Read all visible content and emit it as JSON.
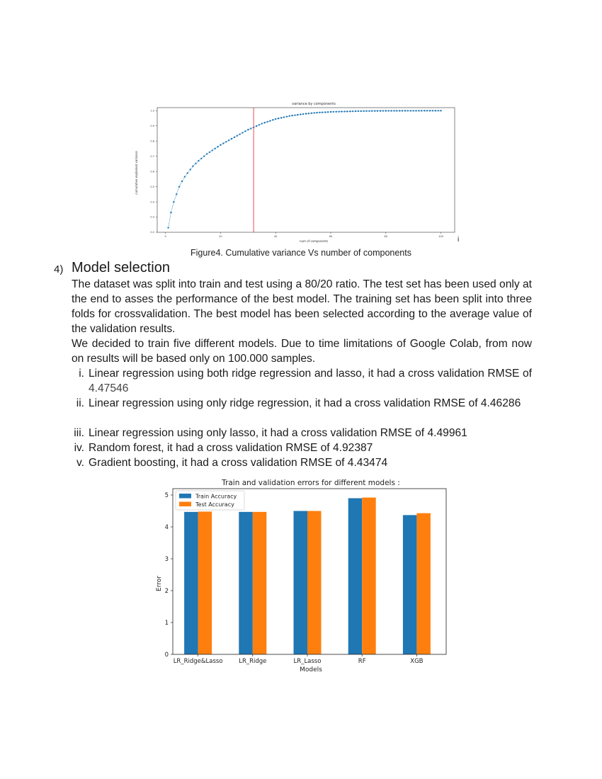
{
  "figure1": {
    "caption": "Figure4. Cumulative variance Vs number of components",
    "stray_mark": "i",
    "chart_data": {
      "type": "line",
      "title": "variance by components",
      "xlabel": "num of components",
      "ylabel": "cumulative explained variance",
      "xlim": [
        -3,
        105
      ],
      "ylim": [
        0.2,
        1.02
      ],
      "xticks": [
        0,
        20,
        40,
        60,
        80,
        100
      ],
      "yticks": [
        0.2,
        0.3,
        0.4,
        0.5,
        0.6,
        0.7,
        0.8,
        0.9,
        1.0
      ],
      "vline_x": 32,
      "vline_color": "#e8505b",
      "series_color": "#1f77b4",
      "marker": "dot",
      "linestyle": "dashed",
      "x_start": 1,
      "x_end": 100,
      "curve_anchor_points": [
        [
          1,
          0.23
        ],
        [
          2,
          0.33
        ],
        [
          3,
          0.4
        ],
        [
          4,
          0.45
        ],
        [
          5,
          0.5
        ],
        [
          6,
          0.535
        ],
        [
          7,
          0.565
        ],
        [
          8,
          0.59
        ],
        [
          10,
          0.635
        ],
        [
          12,
          0.67
        ],
        [
          15,
          0.715
        ],
        [
          20,
          0.775
        ],
        [
          25,
          0.825
        ],
        [
          30,
          0.875
        ],
        [
          32,
          0.89
        ],
        [
          35,
          0.915
        ],
        [
          40,
          0.945
        ],
        [
          45,
          0.965
        ],
        [
          50,
          0.978
        ],
        [
          55,
          0.987
        ],
        [
          60,
          0.992
        ],
        [
          70,
          0.997
        ],
        [
          80,
          0.999
        ],
        [
          100,
          1.0
        ]
      ]
    }
  },
  "section": {
    "number": "4)",
    "title": "Model selection",
    "paragraphs": [
      "The dataset was split into train and test using a 80/20 ratio. The test set has been used only at the end to asses the performance of the best model. The training set has been split into three folds for crossvalidation. The best model has been selected according to the average value of the validation results.",
      "We decided to train five different models. Due to time limitations of Google Colab, from now on results will be based only on 100.000 samples."
    ],
    "items": [
      {
        "num": "i.",
        "text": "Linear regression using both ridge regression and lasso, it had a cross validation RMSE of",
        "value": "4.47546"
      },
      {
        "num": "ii.",
        "text": "Linear regression using only ridge regression, it had a cross validation RMSE of",
        "value": "4.46286"
      },
      {
        "num": "iii.",
        "text": "Linear regression using only lasso, it had a cross validation RMSE of",
        "value": "4.49961"
      },
      {
        "num": "iv.",
        "text": "Random forest, it had a cross validation RMSE of",
        "value": "4.92387"
      },
      {
        "num": "v.",
        "text": "Gradient boosting, it had a cross validation RMSE of",
        "value": "4.43474"
      }
    ]
  },
  "figure2": {
    "chart_data": {
      "type": "bar",
      "title": "Train and validation errors for different models :",
      "xlabel": "Models",
      "ylabel": "Error",
      "ylim": [
        0,
        5.2
      ],
      "yticks": [
        0,
        1,
        2,
        3,
        4,
        5
      ],
      "categories": [
        "LR_Ridge&Lasso",
        "LR_Ridge",
        "LR_Lasso",
        "RF",
        "XGB"
      ],
      "series": [
        {
          "name": "Train Accuracy",
          "color": "#1f77b4",
          "values": [
            4.47,
            4.47,
            4.5,
            4.9,
            4.37
          ]
        },
        {
          "name": "Test Accuracy",
          "color": "#ff7f0e",
          "values": [
            4.48,
            4.47,
            4.5,
            4.92,
            4.43
          ]
        }
      ],
      "legend": "top-left"
    }
  }
}
